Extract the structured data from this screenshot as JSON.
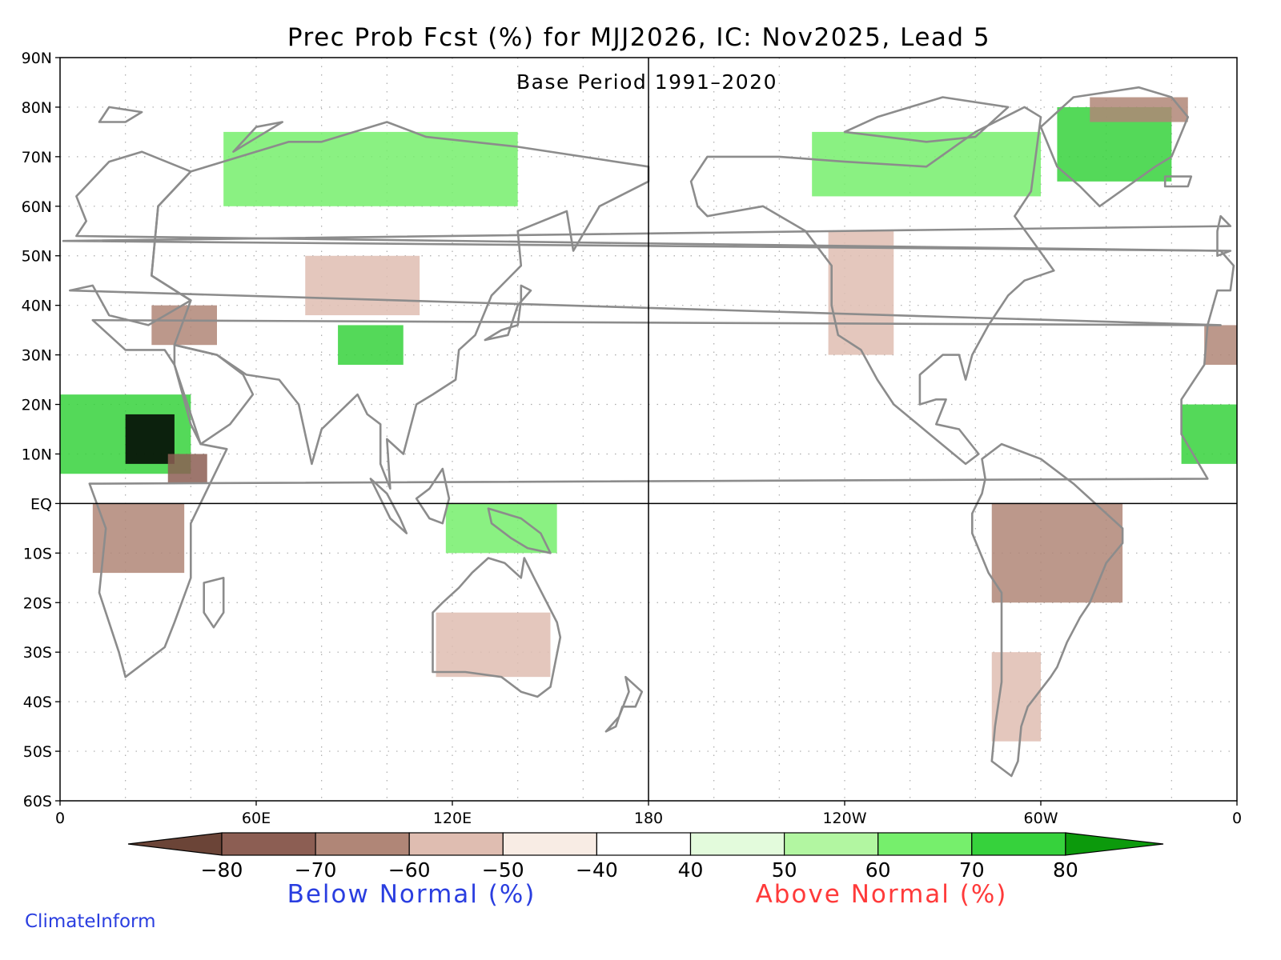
{
  "title": "Prec Prob Fcst (%) for MJJ2026, IC: Nov2025, Lead 5",
  "subtitle": "Base Period 1991–2020",
  "credit": "ClimateInform",
  "lat_ticks": [
    {
      "lat": 90,
      "label": "90N"
    },
    {
      "lat": 80,
      "label": "80N"
    },
    {
      "lat": 70,
      "label": "70N"
    },
    {
      "lat": 60,
      "label": "60N"
    },
    {
      "lat": 50,
      "label": "50N"
    },
    {
      "lat": 40,
      "label": "40N"
    },
    {
      "lat": 30,
      "label": "30N"
    },
    {
      "lat": 20,
      "label": "20N"
    },
    {
      "lat": 10,
      "label": "10N"
    },
    {
      "lat": 0,
      "label": "EQ"
    },
    {
      "lat": -10,
      "label": "10S"
    },
    {
      "lat": -20,
      "label": "20S"
    },
    {
      "lat": -30,
      "label": "30S"
    },
    {
      "lat": -40,
      "label": "40S"
    },
    {
      "lat": -50,
      "label": "50S"
    },
    {
      "lat": -60,
      "label": "60S"
    }
  ],
  "lon_ticks": [
    {
      "lon": 0,
      "label": "0"
    },
    {
      "lon": 60,
      "label": "60E"
    },
    {
      "lon": 120,
      "label": "120E"
    },
    {
      "lon": 180,
      "label": "180"
    },
    {
      "lon": 240,
      "label": "120W"
    },
    {
      "lon": 300,
      "label": "60W"
    },
    {
      "lon": 360,
      "label": "0"
    }
  ],
  "legend": {
    "below_label": "Below Normal (%)",
    "above_label": "Above Normal (%)",
    "below_label_color": "#2a3ee0",
    "above_label_color": "#ff3a3a",
    "tick_labels": [
      "−80",
      "−70",
      "−60",
      "−50",
      "−40",
      "40",
      "50",
      "60",
      "70",
      "80"
    ],
    "low_arrow_color": "#6b4437",
    "high_arrow_color": "#0c9a0c",
    "bin_colors": [
      "#8c5e53",
      "#b08677",
      "#dfbdb1",
      "#f8ece4",
      "#ffffff",
      "#e3fbdc",
      "#b2f6a1",
      "#76ef6c",
      "#36d23c"
    ]
  },
  "map": {
    "lon_range": [
      0,
      360
    ],
    "lat_range": [
      -60,
      90
    ],
    "ocean_color": "#ffffff",
    "coast_color": "#8c8c8c",
    "grid_color": "#aaaaaa",
    "reference_lines": "equator and 180 meridian"
  },
  "anomaly_regions": [
    {
      "name": "west-africa-sahel",
      "category": "above",
      "level": 70,
      "lon": [
        0,
        40
      ],
      "lat": [
        6,
        22
      ]
    },
    {
      "name": "central-sahel-core",
      "category": "above",
      "level": 80,
      "lon": [
        20,
        35
      ],
      "lat": [
        8,
        18
      ]
    },
    {
      "name": "southern-africa",
      "category": "below",
      "level": -60,
      "lon": [
        10,
        38
      ],
      "lat": [
        -14,
        0
      ]
    },
    {
      "name": "horn-of-africa",
      "category": "below",
      "level": -70,
      "lon": [
        33,
        45
      ],
      "lat": [
        4,
        10
      ]
    },
    {
      "name": "middle-east",
      "category": "below",
      "level": -60,
      "lon": [
        28,
        48
      ],
      "lat": [
        32,
        40
      ]
    },
    {
      "name": "central-asia",
      "category": "below",
      "level": -50,
      "lon": [
        75,
        110
      ],
      "lat": [
        38,
        50
      ]
    },
    {
      "name": "tibet",
      "category": "above",
      "level": 70,
      "lon": [
        85,
        105
      ],
      "lat": [
        28,
        36
      ]
    },
    {
      "name": "siberia-north",
      "category": "above",
      "level": 60,
      "lon": [
        50,
        140
      ],
      "lat": [
        60,
        75
      ]
    },
    {
      "name": "maritime-continent",
      "category": "above",
      "level": 60,
      "lon": [
        118,
        152
      ],
      "lat": [
        -10,
        0
      ]
    },
    {
      "name": "australia-interior",
      "category": "below",
      "level": -50,
      "lon": [
        115,
        150
      ],
      "lat": [
        -35,
        -22
      ]
    },
    {
      "name": "canada-north",
      "category": "above",
      "level": 60,
      "lon": [
        230,
        300
      ],
      "lat": [
        62,
        75
      ]
    },
    {
      "name": "greenland",
      "category": "above",
      "level": 70,
      "lon": [
        305,
        340
      ],
      "lat": [
        65,
        80
      ]
    },
    {
      "name": "greenland-northeast",
      "category": "below",
      "level": -60,
      "lon": [
        315,
        345
      ],
      "lat": [
        77,
        82
      ]
    },
    {
      "name": "western-north-america",
      "category": "below",
      "level": -50,
      "lon": [
        235,
        255
      ],
      "lat": [
        30,
        55
      ]
    },
    {
      "name": "amazon-brazil",
      "category": "below",
      "level": -60,
      "lon": [
        285,
        325
      ],
      "lat": [
        -20,
        0
      ]
    },
    {
      "name": "andes-south",
      "category": "below",
      "level": -50,
      "lon": [
        285,
        300
      ],
      "lat": [
        -48,
        -30
      ]
    },
    {
      "name": "northwest-africa",
      "category": "below",
      "level": -60,
      "lon": [
        350,
        360
      ],
      "lat": [
        28,
        36
      ]
    },
    {
      "name": "west-africa-west",
      "category": "above",
      "level": 70,
      "lon": [
        343,
        360
      ],
      "lat": [
        8,
        20
      ]
    }
  ]
}
